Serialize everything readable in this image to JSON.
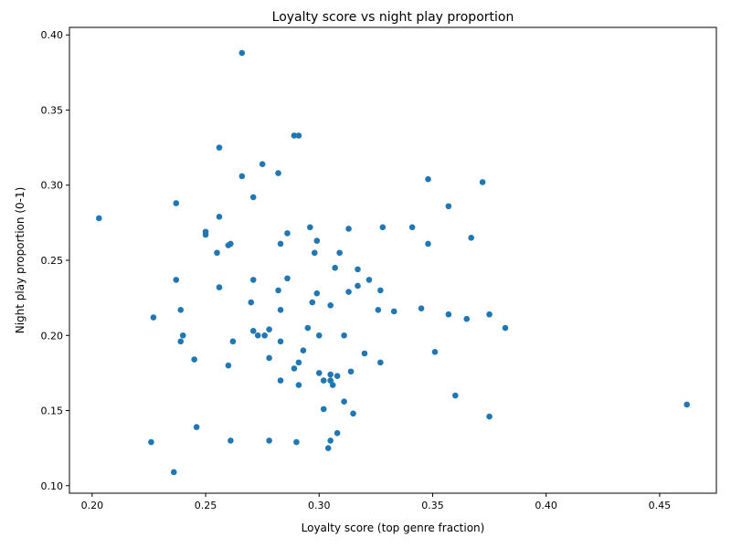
{
  "chart_data": {
    "type": "scatter",
    "title": "Loyalty score vs night play proportion",
    "xlabel": "Loyalty score (top genre fraction)",
    "ylabel": "Night play proportion (0-1)",
    "xlim": [
      0.19,
      0.475
    ],
    "ylim": [
      0.095,
      0.405
    ],
    "xticks": [
      0.2,
      0.25,
      0.3,
      0.35,
      0.4,
      0.45
    ],
    "xtick_labels": [
      "0.20",
      "0.25",
      "0.30",
      "0.35",
      "0.40",
      "0.45"
    ],
    "yticks": [
      0.1,
      0.15,
      0.2,
      0.25,
      0.3,
      0.35,
      0.4
    ],
    "ytick_labels": [
      "0.10",
      "0.15",
      "0.20",
      "0.25",
      "0.30",
      "0.35",
      "0.40"
    ],
    "grid": false,
    "marker_color": "#1f77b4",
    "points": [
      [
        0.266,
        0.388
      ],
      [
        0.289,
        0.333
      ],
      [
        0.291,
        0.333
      ],
      [
        0.256,
        0.325
      ],
      [
        0.275,
        0.314
      ],
      [
        0.282,
        0.308
      ],
      [
        0.266,
        0.306
      ],
      [
        0.348,
        0.304
      ],
      [
        0.372,
        0.302
      ],
      [
        0.271,
        0.292
      ],
      [
        0.237,
        0.288
      ],
      [
        0.357,
        0.286
      ],
      [
        0.203,
        0.278
      ],
      [
        0.256,
        0.279
      ],
      [
        0.296,
        0.272
      ],
      [
        0.313,
        0.271
      ],
      [
        0.328,
        0.272
      ],
      [
        0.341,
        0.272
      ],
      [
        0.25,
        0.269
      ],
      [
        0.25,
        0.267
      ],
      [
        0.286,
        0.268
      ],
      [
        0.367,
        0.265
      ],
      [
        0.299,
        0.263
      ],
      [
        0.261,
        0.261
      ],
      [
        0.26,
        0.26
      ],
      [
        0.283,
        0.261
      ],
      [
        0.348,
        0.261
      ],
      [
        0.255,
        0.255
      ],
      [
        0.298,
        0.255
      ],
      [
        0.309,
        0.255
      ],
      [
        0.307,
        0.245
      ],
      [
        0.317,
        0.244
      ],
      [
        0.237,
        0.237
      ],
      [
        0.271,
        0.237
      ],
      [
        0.286,
        0.238
      ],
      [
        0.322,
        0.237
      ],
      [
        0.256,
        0.232
      ],
      [
        0.317,
        0.233
      ],
      [
        0.282,
        0.23
      ],
      [
        0.299,
        0.228
      ],
      [
        0.313,
        0.229
      ],
      [
        0.327,
        0.23
      ],
      [
        0.27,
        0.222
      ],
      [
        0.297,
        0.222
      ],
      [
        0.305,
        0.22
      ],
      [
        0.239,
        0.217
      ],
      [
        0.283,
        0.217
      ],
      [
        0.326,
        0.217
      ],
      [
        0.333,
        0.216
      ],
      [
        0.345,
        0.218
      ],
      [
        0.227,
        0.212
      ],
      [
        0.357,
        0.214
      ],
      [
        0.365,
        0.211
      ],
      [
        0.375,
        0.214
      ],
      [
        0.382,
        0.205
      ],
      [
        0.295,
        0.205
      ],
      [
        0.271,
        0.203
      ],
      [
        0.278,
        0.204
      ],
      [
        0.24,
        0.2
      ],
      [
        0.273,
        0.2
      ],
      [
        0.276,
        0.2
      ],
      [
        0.3,
        0.2
      ],
      [
        0.311,
        0.2
      ],
      [
        0.239,
        0.196
      ],
      [
        0.262,
        0.196
      ],
      [
        0.283,
        0.196
      ],
      [
        0.293,
        0.19
      ],
      [
        0.32,
        0.188
      ],
      [
        0.351,
        0.189
      ],
      [
        0.245,
        0.184
      ],
      [
        0.278,
        0.185
      ],
      [
        0.291,
        0.182
      ],
      [
        0.327,
        0.182
      ],
      [
        0.26,
        0.18
      ],
      [
        0.289,
        0.178
      ],
      [
        0.3,
        0.175
      ],
      [
        0.305,
        0.174
      ],
      [
        0.308,
        0.173
      ],
      [
        0.314,
        0.176
      ],
      [
        0.283,
        0.17
      ],
      [
        0.302,
        0.17
      ],
      [
        0.305,
        0.17
      ],
      [
        0.291,
        0.167
      ],
      [
        0.306,
        0.167
      ],
      [
        0.36,
        0.16
      ],
      [
        0.311,
        0.156
      ],
      [
        0.462,
        0.154
      ],
      [
        0.302,
        0.151
      ],
      [
        0.315,
        0.148
      ],
      [
        0.375,
        0.146
      ],
      [
        0.246,
        0.139
      ],
      [
        0.308,
        0.135
      ],
      [
        0.226,
        0.129
      ],
      [
        0.261,
        0.13
      ],
      [
        0.278,
        0.13
      ],
      [
        0.29,
        0.129
      ],
      [
        0.305,
        0.13
      ],
      [
        0.304,
        0.125
      ],
      [
        0.236,
        0.109
      ]
    ]
  }
}
